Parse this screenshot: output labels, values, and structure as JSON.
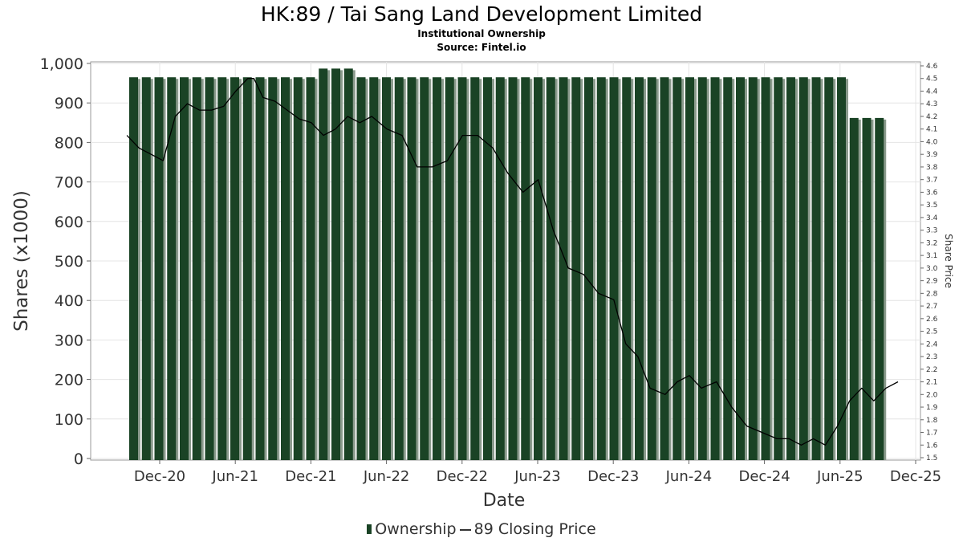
{
  "header": {
    "title": "HK:89 / Tai Sang Land Development Limited",
    "subtitle": "Institutional Ownership",
    "source": "Source: Fintel.io"
  },
  "legend": {
    "ownership_label": "Ownership",
    "price_label": "89 Closing Price"
  },
  "colors": {
    "bar": "#1a4325",
    "bar_shadow": "#8a9a8c",
    "line": "#000000",
    "grid": "#e4e4e4",
    "plot_border": "#9a9a9a"
  },
  "chart_data": {
    "type": "bar",
    "xlabel": "Date",
    "ylabel": "Shares (x1000)",
    "y2label": "Share Price",
    "ylim": [
      0,
      1000
    ],
    "y2lim": [
      1.5,
      4.6
    ],
    "grid": true,
    "legend_position": "bottom",
    "x_ticks": [
      "Dec-20",
      "Jun-21",
      "Dec-21",
      "Jun-22",
      "Dec-22",
      "Jun-23",
      "Dec-23",
      "Jun-24",
      "Dec-24",
      "Jun-25",
      "Dec-25"
    ],
    "y_ticks": [
      "0",
      "100",
      "200",
      "300",
      "400",
      "500",
      "600",
      "700",
      "800",
      "900",
      "1,000"
    ],
    "y2_ticks": [
      "1.5",
      "1.6",
      "1.7",
      "1.8",
      "1.9",
      "2.0",
      "2.1",
      "2.2",
      "2.3",
      "2.4",
      "2.5",
      "2.6",
      "2.7",
      "2.8",
      "2.9",
      "3.0",
      "3.1",
      "3.2",
      "3.3",
      "3.4",
      "3.5",
      "3.6",
      "3.7",
      "3.8",
      "3.9",
      "4.0",
      "4.1",
      "4.2",
      "4.3",
      "4.4",
      "4.5",
      "4.6"
    ],
    "series": [
      {
        "name": "Ownership",
        "values": [
          965,
          965,
          965,
          965,
          965,
          965,
          965,
          965,
          965,
          965,
          965,
          965,
          965,
          965,
          965,
          987,
          987,
          987,
          965,
          965,
          965,
          965,
          965,
          965,
          965,
          965,
          965,
          965,
          965,
          965,
          965,
          965,
          965,
          965,
          965,
          965,
          965,
          965,
          965,
          965,
          965,
          965,
          965,
          965,
          965,
          965,
          965,
          965,
          965,
          965,
          965,
          965,
          965,
          965,
          965,
          965,
          965,
          862,
          862,
          862
        ]
      },
      {
        "name": "89 Closing Price",
        "x": [
          2020.7,
          2020.78,
          2020.86,
          2020.94,
          2021.02,
          2021.1,
          2021.18,
          2021.26,
          2021.34,
          2021.42,
          2021.5,
          2021.54,
          2021.6,
          2021.68,
          2021.76,
          2021.84,
          2021.92,
          2022.0,
          2022.08,
          2022.16,
          2022.24,
          2022.32,
          2022.42,
          2022.52,
          2022.62,
          2022.72,
          2022.82,
          2022.92,
          2023.02,
          2023.12,
          2023.22,
          2023.32,
          2023.42,
          2023.52,
          2023.62,
          2023.72,
          2023.82,
          2023.92,
          2024.0,
          2024.08,
          2024.16,
          2024.26,
          2024.34,
          2024.42,
          2024.5,
          2024.6,
          2024.7,
          2024.8,
          2024.9,
          2025.0,
          2025.08,
          2025.16,
          2025.24,
          2025.32,
          2025.4,
          2025.48,
          2025.56,
          2025.64,
          2025.72,
          2025.8
        ],
        "values": [
          4.05,
          3.95,
          3.9,
          3.85,
          4.2,
          4.3,
          4.25,
          4.25,
          4.28,
          4.4,
          4.5,
          4.5,
          4.35,
          4.32,
          4.25,
          4.18,
          4.15,
          4.05,
          4.1,
          4.2,
          4.15,
          4.2,
          4.1,
          4.05,
          3.8,
          3.8,
          3.85,
          4.05,
          4.05,
          3.95,
          3.75,
          3.6,
          3.7,
          3.3,
          3.0,
          2.95,
          2.8,
          2.75,
          2.4,
          2.3,
          2.05,
          2.0,
          2.1,
          2.15,
          2.05,
          2.1,
          1.9,
          1.75,
          1.7,
          1.65,
          1.65,
          1.6,
          1.65,
          1.6,
          1.75,
          1.95,
          2.05,
          1.95,
          2.05,
          2.1
        ]
      }
    ]
  }
}
